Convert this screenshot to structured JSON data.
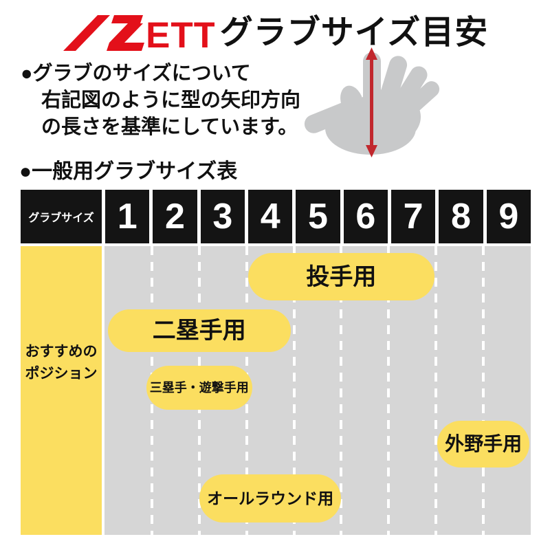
{
  "header": {
    "logo_text": "ZETT",
    "logo_ett": "ETT",
    "title": "グラブサイズ目安"
  },
  "intro": {
    "lines": [
      "●グラブのサイズについて",
      "右記図のように型の矢印方向",
      "の長さを基準にしています。"
    ]
  },
  "section": {
    "title": "●一般用グラブサイズ表"
  },
  "size_table": {
    "corner_label": "グラブサイズ",
    "sizes": [
      "1",
      "2",
      "3",
      "4",
      "5",
      "6",
      "7",
      "8",
      "9"
    ],
    "row_label_lines": [
      "おすすめの",
      "ポジション"
    ],
    "positions": [
      {
        "label": "投手用",
        "from": 4,
        "to": 7
      },
      {
        "label": "二塁手用",
        "from": 1,
        "to": 4
      },
      {
        "label": "三塁手・遊撃手用",
        "from": 2,
        "to": 3
      },
      {
        "label": "外野手用",
        "from": 8,
        "to": 9
      },
      {
        "label": "オールラウンド用",
        "from": 3,
        "to": 5
      }
    ]
  },
  "hand_figure": {
    "icon": "hand-with-measure-arrow",
    "arrow_direction": "vertical"
  },
  "colors": {
    "brand_red": "#E3101A",
    "pill_yellow": "#FBDE60",
    "column_yellow": "#FBDE60",
    "grid_gray": "#D6D6D6",
    "header_black": "#141414",
    "text_black": "#111111",
    "hand_gray": "#C8C9CA",
    "arrow_red": "#C1272D"
  },
  "chart_data": {
    "type": "table",
    "title": "一般用グラブサイズ表",
    "x_categories": [
      "1",
      "2",
      "3",
      "4",
      "5",
      "6",
      "7",
      "8",
      "9"
    ],
    "x_axis_label": "グラブサイズ",
    "row_label": "おすすめのポジション",
    "series": [
      {
        "name": "投手用",
        "size_range": [
          4,
          7
        ]
      },
      {
        "name": "二塁手用",
        "size_range": [
          1,
          4
        ]
      },
      {
        "name": "三塁手・遊撃手用",
        "size_range": [
          2,
          3
        ]
      },
      {
        "name": "外野手用",
        "size_range": [
          8,
          9
        ]
      },
      {
        "name": "オールラウンド用",
        "size_range": [
          3,
          5
        ]
      }
    ],
    "legend_position": "none",
    "grid": "dashed-vertical"
  }
}
